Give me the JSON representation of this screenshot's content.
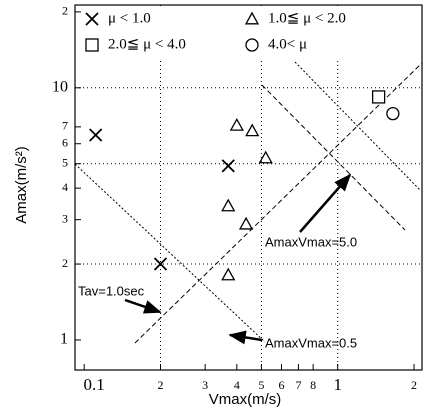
{
  "chart_data": {
    "type": "scatter",
    "xlabel": "Vmax(m/s)",
    "ylabel": "Amax(m/s²)",
    "xscale": "log",
    "yscale": "log",
    "xlim": [
      0.092,
      2.15
    ],
    "ylim": [
      0.76,
      21.3
    ],
    "xticks": [
      {
        "value": 0.1,
        "label": "0.1"
      },
      {
        "value": 0.2,
        "label": "2"
      },
      {
        "value": 0.3,
        "label": "3"
      },
      {
        "value": 0.4,
        "label": "4"
      },
      {
        "value": 0.5,
        "label": "5"
      },
      {
        "value": 0.6,
        "label": "6"
      },
      {
        "value": 0.7,
        "label": "7"
      },
      {
        "value": 0.8,
        "label": "8"
      },
      1,
      {
        "value": 2,
        "label": "2"
      }
    ],
    "yticks": [
      1,
      2,
      3,
      4,
      5,
      6,
      7,
      10,
      {
        "value": 20,
        "label": "2"
      }
    ],
    "xgrid": [
      0.2,
      0.5,
      1
    ],
    "ygrid": [
      2,
      5,
      10
    ],
    "series": [
      {
        "name": "μ < 1.0",
        "marker": "x",
        "color": "#000000",
        "x": [
          0.111,
          0.2,
          0.37
        ],
        "values": [
          6.5,
          2.0,
          4.9
        ]
      },
      {
        "name": "1.0≦ μ < 2.0",
        "marker": "triangle",
        "color": "#000000",
        "x": [
          0.4,
          0.46,
          0.52,
          0.37,
          0.435,
          0.37
        ],
        "values": [
          7.1,
          6.75,
          5.27,
          3.4,
          2.88,
          1.81
        ]
      },
      {
        "name": "2.0≦ μ < 4.0",
        "marker": "square",
        "color": "#000000",
        "x": [
          1.45
        ],
        "values": [
          9.2
        ]
      },
      {
        "name": "4.0< μ",
        "marker": "circle",
        "color": "#000000",
        "x": [
          1.65
        ],
        "values": [
          7.9
        ]
      }
    ],
    "annotations": [
      {
        "text": "Tav=1.0sec"
      },
      {
        "text": "AmaxVmax=0.5"
      },
      {
        "text": "AmaxVmax=5.0"
      }
    ]
  }
}
